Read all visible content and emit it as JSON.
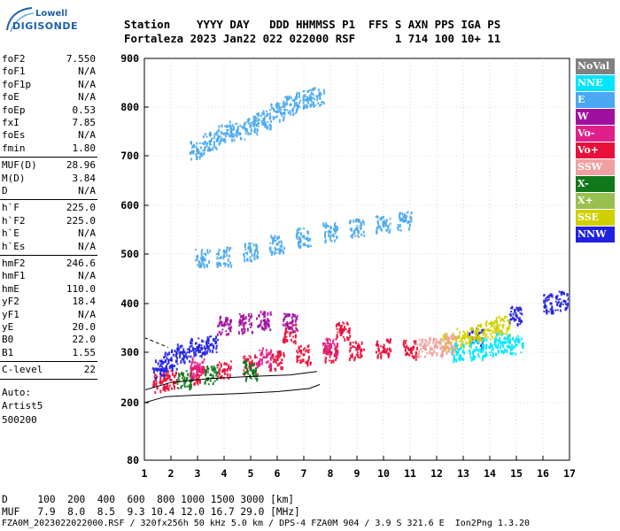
{
  "logo": {
    "line1": "Lowell",
    "line2": "DIGISONDE"
  },
  "header": {
    "line1": "Station    YYYY DAY   DDD HHMMSS P1  FFS S AXN PPS IGA PS",
    "line2": "Fortaleza 2023 Jan22 022 022000 RSF      1 714 100 10+ 11"
  },
  "params": {
    "group1": [
      {
        "label": "foF2",
        "value": "7.550"
      },
      {
        "label": "foF1",
        "value": "N/A"
      },
      {
        "label": "foF1p",
        "value": "N/A"
      },
      {
        "label": "foE",
        "value": "N/A"
      },
      {
        "label": "foEp",
        "value": "0.53"
      },
      {
        "label": "fxI",
        "value": "7.85"
      },
      {
        "label": "foEs",
        "value": "N/A"
      },
      {
        "label": "fmin",
        "value": "1.80"
      }
    ],
    "group2": [
      {
        "label": "MUF(D)",
        "value": "28.96"
      },
      {
        "label": "M(D)",
        "value": "3.84"
      },
      {
        "label": "D",
        "value": "N/A"
      }
    ],
    "group3": [
      {
        "label": "h`F",
        "value": "225.0"
      },
      {
        "label": "h`F2",
        "value": "225.0"
      },
      {
        "label": "h`E",
        "value": "N/A"
      },
      {
        "label": "h`Es",
        "value": "N/A"
      }
    ],
    "group4": [
      {
        "label": "hmF2",
        "value": "246.6"
      },
      {
        "label": "hmF1",
        "value": "N/A"
      },
      {
        "label": "hmE",
        "value": "110.0"
      },
      {
        "label": "yF2",
        "value": "18.4"
      },
      {
        "label": "yF1",
        "value": "N/A"
      },
      {
        "label": "yE",
        "value": "20.0"
      },
      {
        "label": "B0",
        "value": "22.0"
      },
      {
        "label": "B1",
        "value": "1.55"
      }
    ],
    "group5": [
      {
        "label": "C-level",
        "value": "22"
      }
    ],
    "auto_label": "Auto:",
    "auto_name": "Artist5",
    "auto_version": "500200"
  },
  "legend": [
    {
      "label": "NoVal",
      "color": "#808080"
    },
    {
      "label": "NNE",
      "color": "#00e5ff"
    },
    {
      "label": "E",
      "color": "#4aa8f0"
    },
    {
      "label": "W",
      "color": "#a010a0"
    },
    {
      "label": "Vo-",
      "color": "#e0208a"
    },
    {
      "label": "Vo+",
      "color": "#e8103a"
    },
    {
      "label": "SSW",
      "color": "#f0a0a0"
    },
    {
      "label": "X-",
      "color": "#10781a"
    },
    {
      "label": "X+",
      "color": "#98c050"
    },
    {
      "label": "SSE",
      "color": "#d0d000"
    },
    {
      "label": "NNW",
      "color": "#2020e0"
    }
  ],
  "bottom": {
    "line1": "D     100  200  400  600  800 1000 1500 3000 [km]",
    "line2": "MUF   7.9  8.0  8.5  9.3 10.4 12.0 16.7 29.0 [MHz]"
  },
  "footer": "FZA0M_2023022022000.RSF / 320fx256h 50 kHz 5.0 km / DPS-4 FZA0M 904 / 3.9 S 321.6 E  Ion2Png 1.3.20",
  "chart_data": {
    "type": "scatter",
    "title": "",
    "xlabel": "",
    "ylabel": "",
    "xlim": [
      1,
      17
    ],
    "ylim": [
      80,
      900
    ],
    "x_ticks": [
      1,
      2,
      3,
      4,
      5,
      6,
      7,
      8,
      9,
      10,
      11,
      12,
      13,
      14,
      15,
      16,
      17
    ],
    "y_ticks": [
      80,
      200,
      300,
      400,
      500,
      600,
      700,
      800,
      900
    ],
    "grid": true,
    "legend_position": "right",
    "series": [
      {
        "name": "E",
        "color": "#4aa8f0",
        "values": [
          [
            3.0,
            712
          ],
          [
            3.5,
            730
          ],
          [
            4.0,
            745
          ],
          [
            4.5,
            752
          ],
          [
            5.0,
            762
          ],
          [
            5.5,
            775
          ],
          [
            6.0,
            790
          ],
          [
            6.5,
            805
          ],
          [
            7.0,
            815
          ],
          [
            7.5,
            822
          ],
          [
            3.2,
            490
          ],
          [
            4.0,
            495
          ],
          [
            5.0,
            505
          ],
          [
            6.0,
            520
          ],
          [
            7.0,
            535
          ],
          [
            8.0,
            545
          ],
          [
            9.0,
            552
          ],
          [
            10.0,
            560
          ],
          [
            10.8,
            568
          ]
        ]
      },
      {
        "name": "Vo+",
        "color": "#e8103a",
        "values": [
          [
            1.6,
            240
          ],
          [
            2.0,
            245
          ],
          [
            3.0,
            255
          ],
          [
            4.0,
            265
          ],
          [
            5.0,
            275
          ],
          [
            6.0,
            285
          ],
          [
            7.0,
            295
          ],
          [
            8.0,
            300
          ],
          [
            9.0,
            305
          ],
          [
            10.0,
            310
          ],
          [
            11.0,
            305
          ],
          [
            6.5,
            340
          ],
          [
            8.5,
            345
          ]
        ]
      },
      {
        "name": "NNW",
        "color": "#2020e0",
        "values": [
          [
            1.6,
            265
          ],
          [
            2.0,
            285
          ],
          [
            2.5,
            300
          ],
          [
            3.0,
            310
          ],
          [
            3.5,
            315
          ],
          [
            13.5,
            330
          ],
          [
            15.0,
            375
          ],
          [
            16.3,
            400
          ],
          [
            16.8,
            405
          ]
        ]
      },
      {
        "name": "SSE",
        "color": "#d0d000",
        "values": [
          [
            12.5,
            320
          ],
          [
            13.0,
            330
          ],
          [
            13.5,
            340
          ],
          [
            14.0,
            345
          ],
          [
            14.5,
            355
          ]
        ]
      },
      {
        "name": "NNE",
        "color": "#00e5ff",
        "values": [
          [
            12.8,
            300
          ],
          [
            13.5,
            305
          ],
          [
            14.0,
            310
          ],
          [
            14.5,
            320
          ],
          [
            15.0,
            315
          ]
        ]
      },
      {
        "name": "W",
        "color": "#a010a0",
        "values": [
          [
            4.0,
            355
          ],
          [
            4.8,
            360
          ],
          [
            5.5,
            365
          ],
          [
            6.5,
            360
          ]
        ]
      },
      {
        "name": "SSW",
        "color": "#f0a0a0",
        "values": [
          [
            11.5,
            310
          ],
          [
            12.0,
            312
          ],
          [
            12.5,
            318
          ]
        ]
      },
      {
        "name": "X-",
        "color": "#10781a",
        "values": [
          [
            2.5,
            245
          ],
          [
            3.5,
            255
          ],
          [
            5.0,
            265
          ]
        ]
      },
      {
        "name": "Vo-",
        "color": "#e0208a",
        "values": [
          [
            3.0,
            270
          ],
          [
            5.5,
            290
          ],
          [
            8.0,
            310
          ]
        ]
      }
    ]
  }
}
